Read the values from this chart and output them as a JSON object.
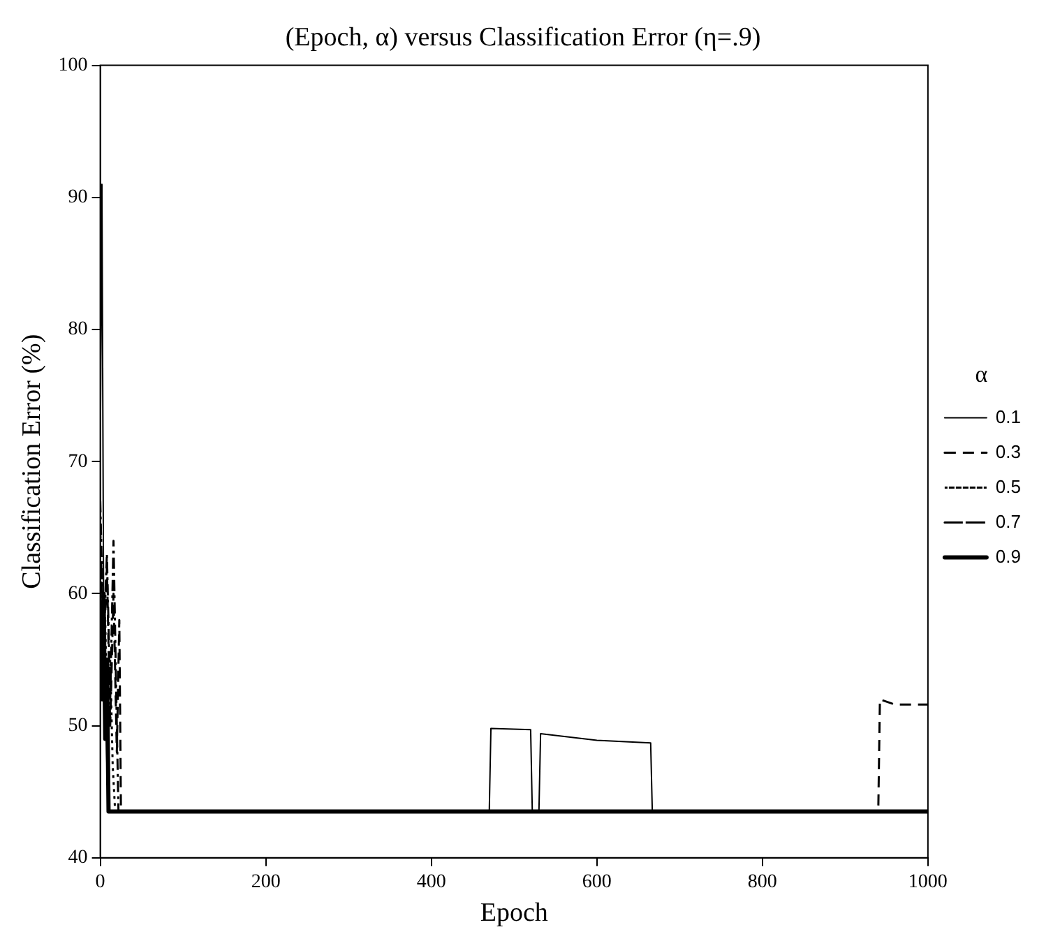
{
  "chart_data": {
    "type": "line",
    "title": "(Epoch, α) versus Classification Error (η=.9)",
    "xlabel": "Epoch",
    "ylabel": "Classification Error (%)",
    "legend_title": "α",
    "legend": "right",
    "grid": false,
    "marker": "none",
    "xlim": [
      0,
      1000
    ],
    "ylim": [
      40,
      100
    ],
    "xticks": [
      0,
      200,
      400,
      600,
      800,
      1000
    ],
    "yticks": [
      40,
      50,
      60,
      70,
      80,
      90,
      100
    ],
    "series": [
      {
        "name": "0.1",
        "color": "#000000",
        "line_style": "solid",
        "x": [
          0,
          2,
          4,
          6,
          8,
          10,
          12,
          470,
          472,
          520,
          522,
          530,
          532,
          600,
          665,
          667,
          1000
        ],
        "values": [
          70,
          91,
          60,
          52,
          47,
          43.5,
          43.5,
          43.5,
          49.8,
          49.7,
          43.5,
          43.5,
          49.4,
          48.9,
          48.7,
          43.5,
          43.5
        ]
      },
      {
        "name": "0.3",
        "color": "#000000",
        "line_style": "dashed",
        "x": [
          0,
          4,
          8,
          12,
          16,
          20,
          23,
          25,
          940,
          942,
          960,
          1000
        ],
        "values": [
          65,
          55,
          62,
          50,
          60,
          48,
          58,
          43.5,
          43.5,
          52,
          51.6,
          51.6
        ]
      },
      {
        "name": "0.5",
        "color": "#000000",
        "line_style": "dotted",
        "x": [
          0,
          3,
          6,
          9,
          12,
          15,
          18
        ],
        "values": [
          62,
          52,
          58,
          48,
          55,
          47,
          43.5
        ]
      },
      {
        "name": "0.7",
        "color": "#000000",
        "line_style": "dashdot",
        "x": [
          0,
          4,
          8,
          12,
          16,
          20,
          22,
          1000
        ],
        "values": [
          67,
          56,
          63,
          52,
          64,
          50,
          43.5,
          43.5
        ]
      },
      {
        "name": "0.9",
        "color": "#000000",
        "line_style": "solid",
        "x": [
          0,
          2,
          4,
          6,
          8,
          10,
          1000
        ],
        "values": [
          58,
          52,
          60,
          49,
          55,
          43.5,
          43.5
        ]
      }
    ]
  }
}
